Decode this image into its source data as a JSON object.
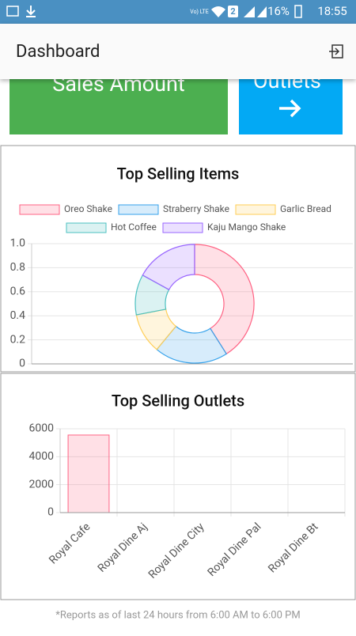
{
  "status_bar": {
    "sim": "2",
    "battery": "16%",
    "time": "18:55"
  },
  "header": {
    "title": "Dashboard"
  },
  "cards": [
    {
      "label": "Sales Amount",
      "color": "#4caf50"
    },
    {
      "label": "Outlets",
      "color": "#03a9f4"
    }
  ],
  "chart_data": [
    {
      "type": "doughnut",
      "title": "Top Selling Items",
      "categories": [
        "Oreo Shake",
        "Straberry Shake",
        "Garlic Bread",
        "Hot Coffee",
        "Kaju Mango Shake"
      ],
      "values": [
        41,
        20,
        11,
        11,
        17
      ],
      "colors": [
        "#ff6384",
        "#36a2eb",
        "#ffce56",
        "#4bc0c0",
        "#9966ff"
      ],
      "ylim": [
        0,
        1
      ],
      "yticks": [
        0,
        0.2,
        0.4,
        0.6,
        0.8,
        {
          "value": 1,
          "label": "1.0"
        }
      ],
      "grid": true
    },
    {
      "type": "bar",
      "title": "Top Selling Outlets",
      "categories": [
        "Royal Cafe",
        "Royal Dine Aj",
        "Royal Dine City",
        "Royal Dine Pal",
        "Royal Dine Bt"
      ],
      "values": [
        5550,
        0,
        0,
        0,
        0
      ],
      "color": "#ff6384",
      "ylim": [
        0,
        6000
      ],
      "yticks": [
        0,
        2000,
        4000,
        6000
      ],
      "grid": true
    }
  ],
  "footer": {
    "note": "*Reports as of last 24 hours from 6:00 AM to 6:00 PM"
  }
}
